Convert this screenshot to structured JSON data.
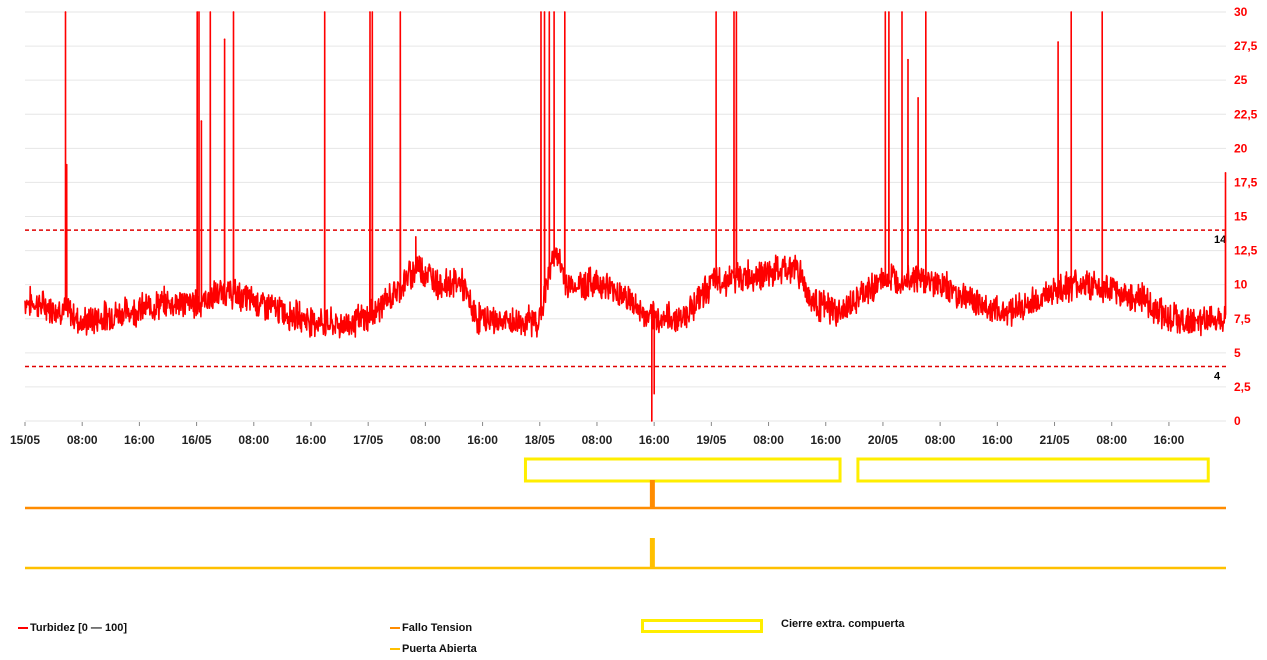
{
  "chart_data": {
    "type": "line",
    "title": "",
    "y_axis": {
      "side": "right",
      "range": [
        0,
        30
      ],
      "ticks": [
        "0",
        "2,5",
        "5",
        "7,5",
        "10",
        "12,5",
        "15",
        "17,5",
        "20",
        "22,5",
        "25",
        "27,5",
        "30"
      ],
      "grid": true,
      "tick_color": "#ff0000"
    },
    "x_axis": {
      "range": [
        "15/05 00:00",
        "21/05 23:59"
      ],
      "ticks": [
        "15/05",
        "08:00",
        "16:00",
        "16/05",
        "08:00",
        "16:00",
        "17/05",
        "08:00",
        "16:00",
        "18/05",
        "08:00",
        "16:00",
        "19/05",
        "08:00",
        "16:00",
        "20/05",
        "08:00",
        "16:00",
        "21/05",
        "08:00",
        "16:00"
      ]
    },
    "thresholds": [
      {
        "value": 14,
        "label": "14",
        "style": "dashed",
        "color": "#e00000"
      },
      {
        "value": 4,
        "label": "4",
        "style": "dashed",
        "color": "#e00000"
      }
    ],
    "series": [
      {
        "name": "Turbidez [0 — 100]",
        "color": "#ff0000",
        "baseline": [
          [
            "15/05 00:00",
            8.8
          ],
          [
            "15/05 03:00",
            8.4
          ],
          [
            "15/05 06:00",
            8.1
          ],
          [
            "15/05 08:00",
            7.2
          ],
          [
            "15/05 12:00",
            7.8
          ],
          [
            "15/05 16:00",
            8.2
          ],
          [
            "15/05 20:00",
            8.7
          ],
          [
            "16/05 00:00",
            8.6
          ],
          [
            "16/05 04:00",
            9.5
          ],
          [
            "16/05 08:00",
            8.8
          ],
          [
            "16/05 12:00",
            8.0
          ],
          [
            "16/05 16:00",
            7.4
          ],
          [
            "16/05 20:00",
            7.0
          ],
          [
            "17/05 00:00",
            7.6
          ],
          [
            "17/05 04:00",
            9.5
          ],
          [
            "17/05 07:00",
            11.4
          ],
          [
            "17/05 10:00",
            10.0
          ],
          [
            "17/05 13:00",
            10.2
          ],
          [
            "17/05 15:00",
            7.6
          ],
          [
            "17/05 20:00",
            7.2
          ],
          [
            "18/05 00:00",
            7.4
          ],
          [
            "18/05 02:00",
            12.5
          ],
          [
            "18/05 04:00",
            9.9
          ],
          [
            "18/05 08:00",
            10.2
          ],
          [
            "18/05 12:00",
            9.2
          ],
          [
            "18/05 15:00",
            7.5
          ],
          [
            "18/05 20:00",
            7.6
          ],
          [
            "19/05 00:00",
            10.1
          ],
          [
            "19/05 04:00",
            10.6
          ],
          [
            "19/05 08:00",
            10.8
          ],
          [
            "19/05 12:00",
            11.3
          ],
          [
            "19/05 14:00",
            8.8
          ],
          [
            "19/05 18:00",
            7.9
          ],
          [
            "20/05 00:00",
            10.4
          ],
          [
            "20/05 04:00",
            10.6
          ],
          [
            "20/05 08:00",
            10.0
          ],
          [
            "20/05 12:00",
            9.0
          ],
          [
            "20/05 16:00",
            8.0
          ],
          [
            "20/05 20:00",
            8.4
          ],
          [
            "21/05 00:00",
            9.6
          ],
          [
            "21/05 04:00",
            10.1
          ],
          [
            "21/05 08:00",
            9.5
          ],
          [
            "21/05 12:00",
            9.0
          ],
          [
            "21/05 16:00",
            7.6
          ],
          [
            "21/05 20:00",
            7.2
          ],
          [
            "21/05 23:59",
            7.8
          ]
        ],
        "spikes": [
          [
            "15/05 05:40",
            30
          ],
          [
            "15/05 05:50",
            18.8
          ],
          [
            "16/05 00:05",
            30
          ],
          [
            "16/05 00:20",
            30
          ],
          [
            "16/05 00:40",
            22
          ],
          [
            "16/05 01:55",
            30
          ],
          [
            "16/05 03:55",
            28
          ],
          [
            "16/05 05:10",
            30
          ],
          [
            "16/05 17:55",
            30
          ],
          [
            "17/05 00:15",
            30
          ],
          [
            "17/05 00:35",
            30
          ],
          [
            "17/05 04:30",
            30
          ],
          [
            "17/05 06:40",
            13.5
          ],
          [
            "18/05 00:10",
            30
          ],
          [
            "18/05 00:40",
            30
          ],
          [
            "18/05 01:20",
            30
          ],
          [
            "18/05 02:00",
            30
          ],
          [
            "18/05 03:30",
            30
          ],
          [
            "19/05 00:40",
            30
          ],
          [
            "19/05 03:10",
            30
          ],
          [
            "19/05 03:30",
            30
          ],
          [
            "20/05 00:20",
            30
          ],
          [
            "20/05 00:50",
            30
          ],
          [
            "20/05 02:40",
            30
          ],
          [
            "20/05 03:30",
            26.5
          ],
          [
            "20/05 04:55",
            23.7
          ],
          [
            "20/05 06:00",
            30
          ],
          [
            "21/05 00:30",
            27.8
          ],
          [
            "21/05 02:20",
            30
          ],
          [
            "21/05 06:40",
            30
          ],
          [
            "21/05 23:55",
            18.2
          ]
        ],
        "dips": [
          [
            "18/05 15:40",
            0
          ],
          [
            "18/05 16:00",
            2
          ]
        ]
      }
    ],
    "event_series": [
      {
        "name": "Fallo Tension",
        "color": "#ff8c00",
        "events": [
          "18/05 15:45"
        ]
      },
      {
        "name": "Puerta Abierta",
        "color": "#ffc000",
        "events": [
          "18/05 15:45"
        ]
      }
    ],
    "highlight_periods": {
      "name": "Cierre extra. compuerta",
      "color": "#ffee00",
      "periods": [
        [
          "17/05 22:00",
          "19/05 18:00"
        ],
        [
          "19/05 20:30",
          "21/05 21:30"
        ]
      ]
    }
  },
  "legend": {
    "turbidez": "Turbidez [0 — 100]",
    "fallo": "Fallo Tension",
    "puerta": "Puerta Abierta",
    "cierre": "Cierre extra. compuerta"
  }
}
